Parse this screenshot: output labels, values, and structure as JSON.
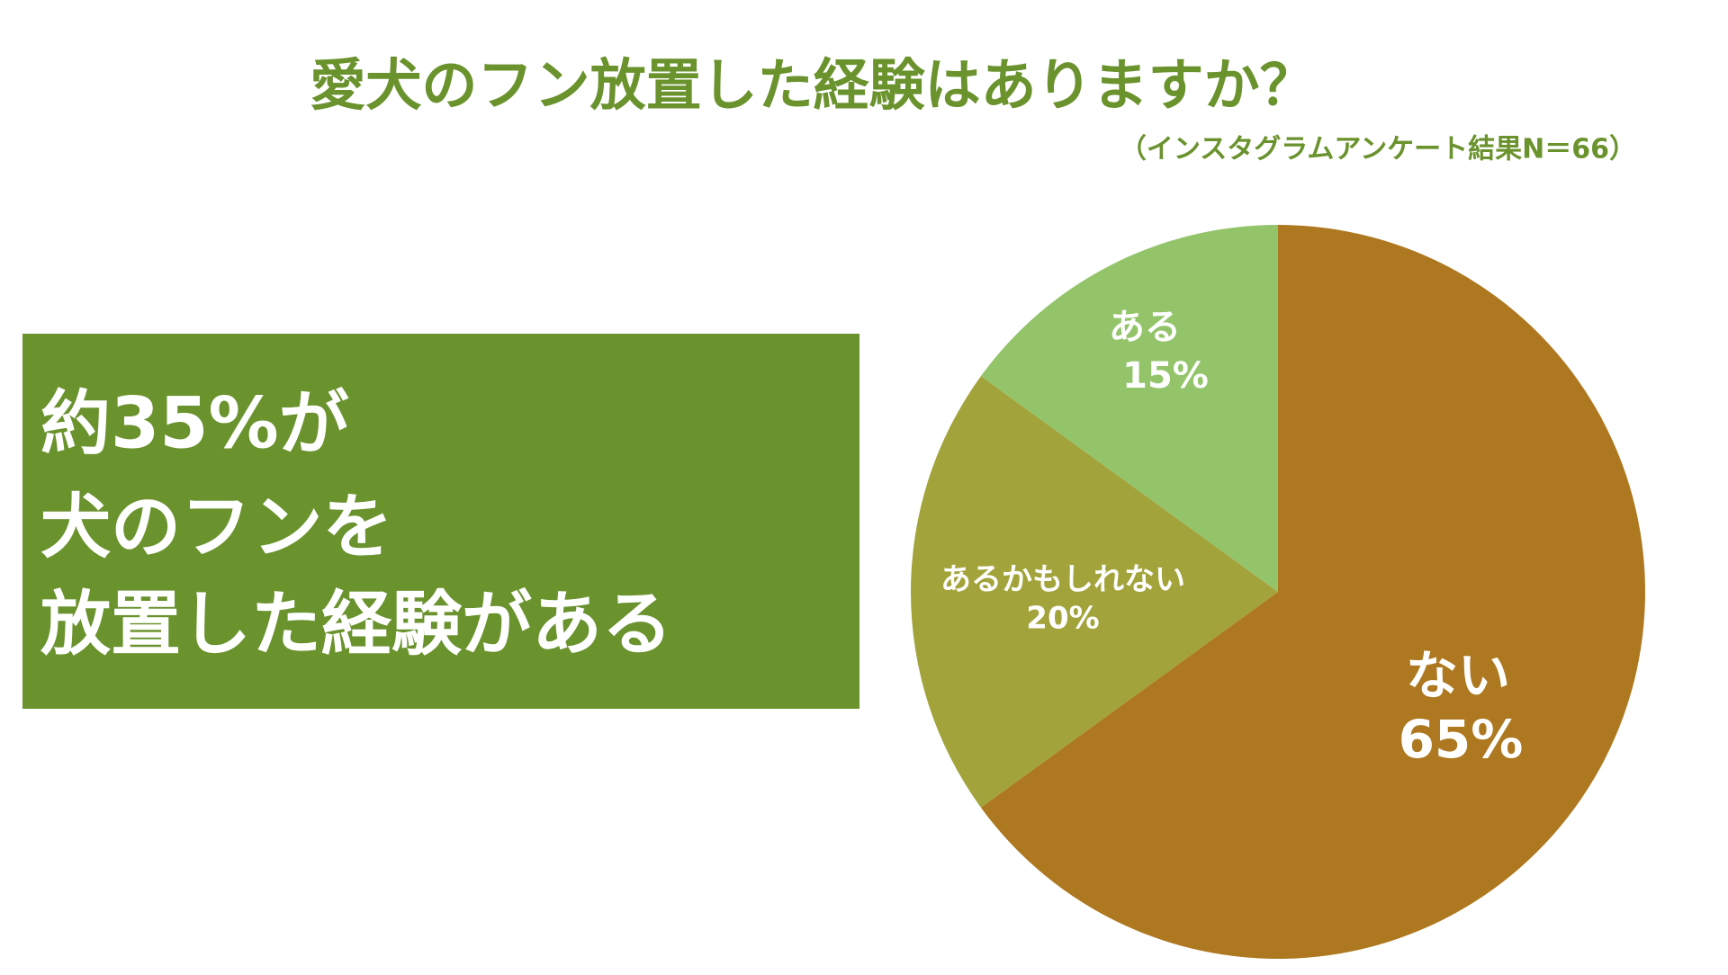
{
  "chart_data": {
    "type": "pie",
    "title": "愛犬のフン放置した経験はありますか？",
    "subtitle": "（インスタグラムアンケート結果N＝66）",
    "categories": [
      "ない",
      "あるかもしれない",
      "ある"
    ],
    "values": [
      65,
      20,
      15
    ],
    "value_labels": [
      "65%",
      "20%",
      "15%"
    ],
    "colors": [
      "#ad7820",
      "#a3a33b",
      "#93c46a"
    ]
  },
  "callout": {
    "lines": [
      "約35%が",
      "犬のフンを",
      "放置した経験がある"
    ]
  }
}
